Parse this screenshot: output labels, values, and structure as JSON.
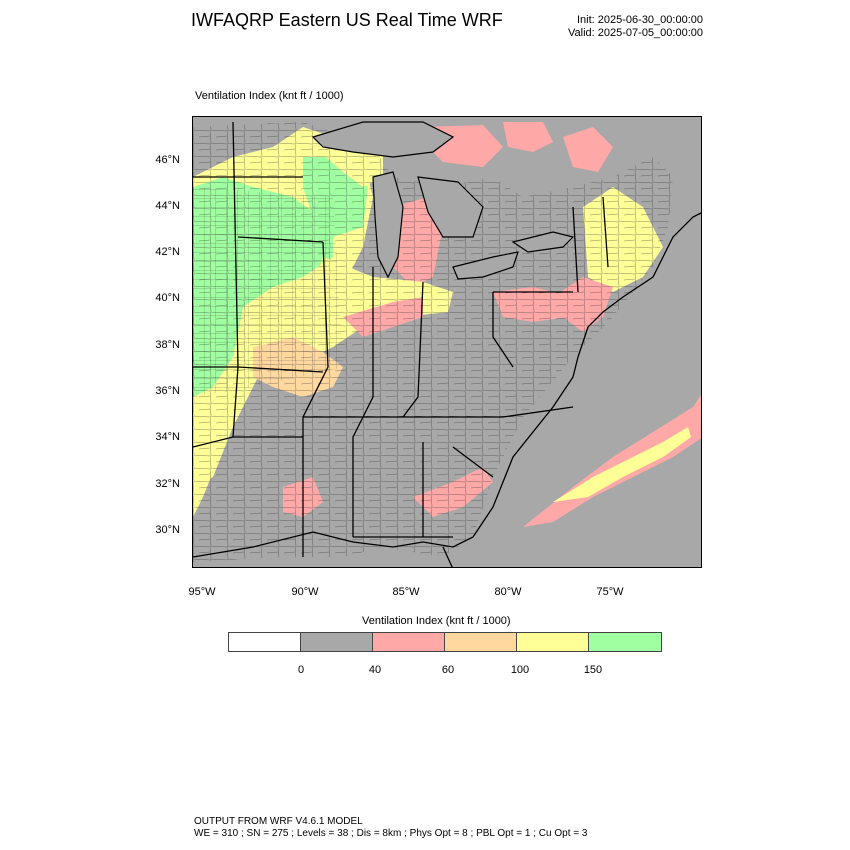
{
  "header": {
    "title": "IWFAQRP Eastern US Real Time WRF",
    "init": "Init: 2025-06-30_00:00:00",
    "valid": "Valid: 2025-07-05_00:00:00"
  },
  "plot": {
    "field_label": "Ventilation Index   (knt ft / 1000)"
  },
  "map": {
    "lat_labels": [
      "46°N",
      "44°N",
      "42°N",
      "40°N",
      "38°N",
      "36°N",
      "34°N",
      "32°N",
      "30°N"
    ],
    "lon_labels": [
      "95°W",
      "90°W",
      "85°W",
      "80°W",
      "75°W"
    ],
    "colors": {
      "land_default": "#a8a8a8",
      "water": "#a8a8a8",
      "c40_60": "#ffa8a8",
      "c60_100": "#ffd8a0",
      "c100_150": "#ffff98",
      "c150_plus": "#a0ffa0",
      "boundary": "#000000"
    }
  },
  "legend": {
    "title": "Ventilation Index  (knt ft / 1000)",
    "swatches": [
      "#ffffff",
      "#a8a8a8",
      "#ffa8a8",
      "#ffd8a0",
      "#ffff98",
      "#a0ffa0"
    ],
    "ticks": [
      "0",
      "40",
      "60",
      "100",
      "150"
    ]
  },
  "footer": {
    "line1": "OUTPUT FROM WRF V4.6.1 MODEL",
    "line2": "WE = 310 ; SN = 275 ; Levels = 38 ; Dis = 8km ; Phys Opt = 8 ; PBL Opt = 1 ; Cu Opt = 3"
  }
}
